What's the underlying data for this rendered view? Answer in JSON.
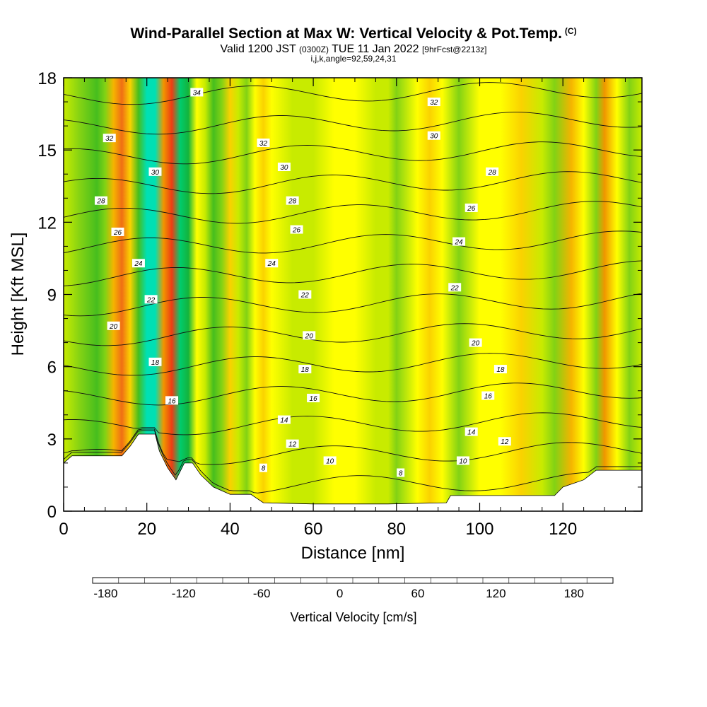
{
  "header": {
    "title": "Wind-Parallel Section at Max W: Vertical Velocity & Pot.Temp.",
    "title_mark": "(C)",
    "valid_prefix": "Valid 1200 JST",
    "valid_zulu": "(0300Z)",
    "valid_date": "TUE 11 Jan 2022",
    "forecast": "[9hrFcst@2213z]",
    "params": "i,j,k,angle=92,59,24,31"
  },
  "chart_data": {
    "type": "heatmap",
    "xlabel": "Distance [nm]",
    "ylabel": "Height [Kft MSL]",
    "xlim": [
      0,
      139
    ],
    "ylim": [
      0,
      18
    ],
    "x_ticks": [
      0,
      20,
      40,
      60,
      80,
      100,
      120
    ],
    "y_ticks": [
      0,
      3,
      6,
      9,
      12,
      15,
      18
    ],
    "vertical_velocity_columns": [
      {
        "x": 0,
        "w": 0
      },
      {
        "x": 4,
        "w": -12
      },
      {
        "x": 8,
        "w": -45
      },
      {
        "x": 10,
        "w": -20
      },
      {
        "x": 12,
        "w": 60
      },
      {
        "x": 14,
        "w": 95
      },
      {
        "x": 16,
        "w": 40
      },
      {
        "x": 18,
        "w": -50
      },
      {
        "x": 20,
        "w": -110
      },
      {
        "x": 22,
        "w": -95
      },
      {
        "x": 24,
        "w": 75
      },
      {
        "x": 26,
        "w": 110
      },
      {
        "x": 28,
        "w": -85
      },
      {
        "x": 30,
        "w": -60
      },
      {
        "x": 32,
        "w": 25
      },
      {
        "x": 34,
        "w": 0
      },
      {
        "x": 36,
        "w": -50
      },
      {
        "x": 38,
        "w": -30
      },
      {
        "x": 40,
        "w": 30
      },
      {
        "x": 42,
        "w": 8
      },
      {
        "x": 44,
        "w": -20
      },
      {
        "x": 46,
        "w": 15
      },
      {
        "x": 48,
        "w": 45
      },
      {
        "x": 50,
        "w": 20
      },
      {
        "x": 55,
        "w": -5
      },
      {
        "x": 60,
        "w": -8
      },
      {
        "x": 65,
        "w": 10
      },
      {
        "x": 70,
        "w": 15
      },
      {
        "x": 75,
        "w": 5
      },
      {
        "x": 78,
        "w": -10
      },
      {
        "x": 80,
        "w": -12
      },
      {
        "x": 85,
        "w": 25
      },
      {
        "x": 88,
        "w": 45
      },
      {
        "x": 91,
        "w": 15
      },
      {
        "x": 95,
        "w": -12
      },
      {
        "x": 100,
        "w": 20
      },
      {
        "x": 105,
        "w": 10
      },
      {
        "x": 110,
        "w": 30
      },
      {
        "x": 115,
        "w": 5
      },
      {
        "x": 118,
        "w": -20
      },
      {
        "x": 122,
        "w": 55
      },
      {
        "x": 125,
        "w": 10
      },
      {
        "x": 128,
        "w": -15
      },
      {
        "x": 130,
        "w": 85
      },
      {
        "x": 133,
        "w": 15
      },
      {
        "x": 136,
        "w": -30
      },
      {
        "x": 139,
        "w": -10
      }
    ],
    "terrain_kft": [
      {
        "x": 0,
        "h": 2.0
      },
      {
        "x": 2,
        "h": 2.3
      },
      {
        "x": 14,
        "h": 2.3
      },
      {
        "x": 16,
        "h": 2.7
      },
      {
        "x": 18,
        "h": 3.2
      },
      {
        "x": 22,
        "h": 3.2
      },
      {
        "x": 23,
        "h": 2.5
      },
      {
        "x": 25,
        "h": 1.8
      },
      {
        "x": 27,
        "h": 1.3
      },
      {
        "x": 29,
        "h": 2.0
      },
      {
        "x": 31,
        "h": 2.0
      },
      {
        "x": 33,
        "h": 1.5
      },
      {
        "x": 36,
        "h": 1.0
      },
      {
        "x": 40,
        "h": 0.7
      },
      {
        "x": 45,
        "h": 0.7
      },
      {
        "x": 48,
        "h": 0.35
      },
      {
        "x": 60,
        "h": 0.3
      },
      {
        "x": 78,
        "h": 0.3
      },
      {
        "x": 92,
        "h": 0.35
      },
      {
        "x": 93,
        "h": 0.65
      },
      {
        "x": 118,
        "h": 0.65
      },
      {
        "x": 120,
        "h": 1.0
      },
      {
        "x": 125,
        "h": 1.3
      },
      {
        "x": 128,
        "h": 1.7
      },
      {
        "x": 139,
        "h": 1.7
      }
    ],
    "theta_levels": [
      8,
      10,
      12,
      14,
      16,
      18,
      20,
      22,
      24,
      26,
      28,
      30,
      32,
      34
    ],
    "contour_labels": [
      {
        "x": 32,
        "y": 17.4,
        "text": "34"
      },
      {
        "x": 11,
        "y": 15.5,
        "text": "32"
      },
      {
        "x": 48,
        "y": 15.3,
        "text": "32"
      },
      {
        "x": 89,
        "y": 17.0,
        "text": "32"
      },
      {
        "x": 22,
        "y": 14.1,
        "text": "30"
      },
      {
        "x": 53,
        "y": 14.3,
        "text": "30"
      },
      {
        "x": 89,
        "y": 15.6,
        "text": "30"
      },
      {
        "x": 103,
        "y": 14.1,
        "text": "28"
      },
      {
        "x": 9,
        "y": 12.9,
        "text": "28"
      },
      {
        "x": 55,
        "y": 12.9,
        "text": "28"
      },
      {
        "x": 98,
        "y": 12.6,
        "text": "26"
      },
      {
        "x": 13,
        "y": 11.6,
        "text": "26"
      },
      {
        "x": 56,
        "y": 11.7,
        "text": "26"
      },
      {
        "x": 95,
        "y": 11.2,
        "text": "24"
      },
      {
        "x": 18,
        "y": 10.3,
        "text": "24"
      },
      {
        "x": 50,
        "y": 10.3,
        "text": "24"
      },
      {
        "x": 21,
        "y": 8.8,
        "text": "22"
      },
      {
        "x": 58,
        "y": 9.0,
        "text": "22"
      },
      {
        "x": 94,
        "y": 9.3,
        "text": "22"
      },
      {
        "x": 12,
        "y": 7.7,
        "text": "20"
      },
      {
        "x": 59,
        "y": 7.3,
        "text": "20"
      },
      {
        "x": 99,
        "y": 7.0,
        "text": "20"
      },
      {
        "x": 22,
        "y": 6.2,
        "text": "18"
      },
      {
        "x": 58,
        "y": 5.9,
        "text": "18"
      },
      {
        "x": 105,
        "y": 5.9,
        "text": "18"
      },
      {
        "x": 26,
        "y": 4.6,
        "text": "16"
      },
      {
        "x": 60,
        "y": 4.7,
        "text": "16"
      },
      {
        "x": 102,
        "y": 4.8,
        "text": "16"
      },
      {
        "x": 53,
        "y": 3.8,
        "text": "14"
      },
      {
        "x": 98,
        "y": 3.3,
        "text": "14"
      },
      {
        "x": 55,
        "y": 2.8,
        "text": "12"
      },
      {
        "x": 106,
        "y": 2.9,
        "text": "12"
      },
      {
        "x": 64,
        "y": 2.1,
        "text": "10"
      },
      {
        "x": 96,
        "y": 2.1,
        "text": "10"
      },
      {
        "x": 48,
        "y": 1.8,
        "text": "8"
      },
      {
        "x": 81,
        "y": 1.6,
        "text": "8"
      }
    ],
    "colorbar": {
      "title": "Vertical Velocity [cm/s]",
      "ticks": [
        "-180",
        "-120",
        "-60",
        "0",
        "60",
        "120",
        "180"
      ],
      "tick_values": [
        -180,
        -120,
        -60,
        0,
        60,
        120,
        180
      ],
      "range": [
        -190,
        210
      ],
      "colors": [
        "#1400f5",
        "#0050ff",
        "#0096f0",
        "#00d8f0",
        "#00e0b4",
        "#00cc6e",
        "#14b43c",
        "#46be1e",
        "#82d214",
        "#c8eb00",
        "#ffff00",
        "#fad200",
        "#f5b400",
        "#f09600",
        "#f06e14",
        "#ee3c14",
        "#e80000",
        "#c8002d",
        "#a01060",
        "#780a8c"
      ]
    }
  }
}
